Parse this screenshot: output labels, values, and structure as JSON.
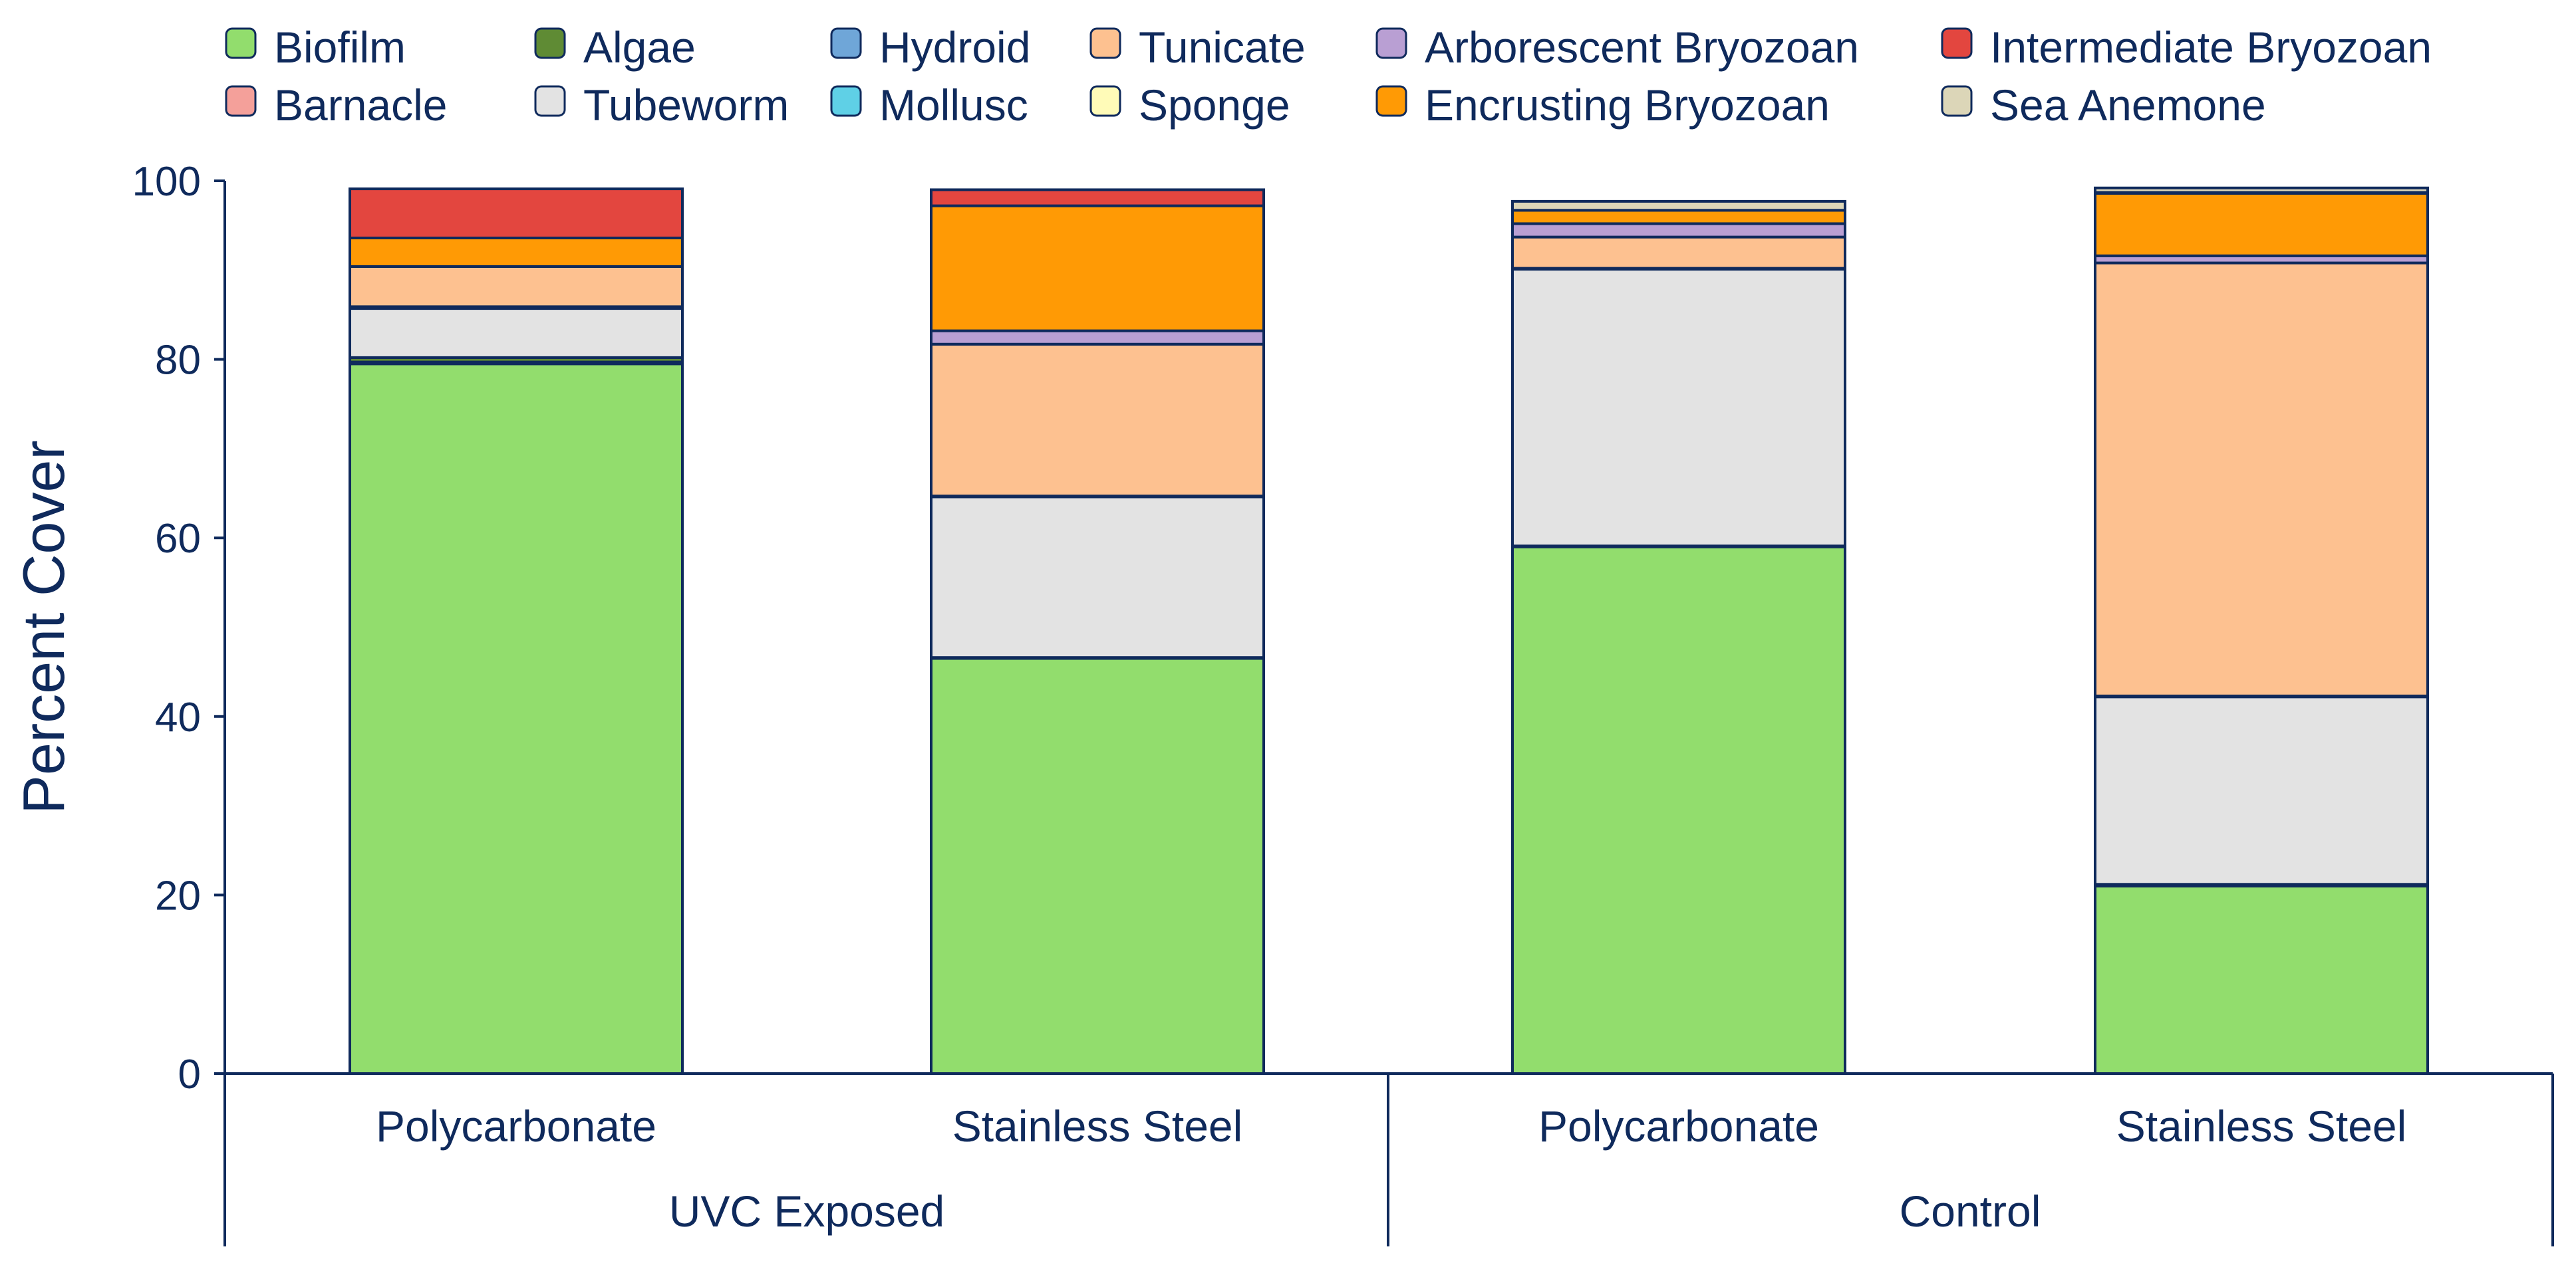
{
  "chart_data": {
    "type": "bar",
    "stacked": true,
    "title": "",
    "xlabel": "",
    "ylabel": "Percent Cover",
    "ylim": [
      0,
      100
    ],
    "yticks": [
      0,
      20,
      40,
      60,
      80,
      100
    ],
    "legend_position": "top",
    "categories": [
      "Polycarbonate",
      "Stainless Steel",
      "Polycarbonate",
      "Stainless Steel"
    ],
    "groups": [
      {
        "label": "UVC Exposed",
        "categories": [
          0,
          1
        ]
      },
      {
        "label": "Control",
        "categories": [
          2,
          3
        ]
      }
    ],
    "series": [
      {
        "name": "Biofilm",
        "color": "#92dd6d",
        "values": [
          79.5,
          46.5,
          59.0,
          21.0
        ]
      },
      {
        "name": "Barnacle",
        "color": "#f4a09a",
        "values": [
          0.2,
          0.1,
          0.1,
          0.2
        ]
      },
      {
        "name": "Algae",
        "color": "#5f8b34",
        "values": [
          0.5,
          0.0,
          0.0,
          0.0
        ]
      },
      {
        "name": "Tubeworm",
        "color": "#e3e3e3",
        "values": [
          5.5,
          18.0,
          31.0,
          21.0
        ]
      },
      {
        "name": "Hydroid",
        "color": "#6fa6d8",
        "values": [
          0.0,
          0.0,
          0.0,
          0.0
        ]
      },
      {
        "name": "Mollusc",
        "color": "#5fd0e6",
        "values": [
          0.2,
          0.1,
          0.1,
          0.1
        ]
      },
      {
        "name": "Tunicate",
        "color": "#fdc190",
        "values": [
          4.5,
          17.0,
          3.5,
          48.5
        ]
      },
      {
        "name": "Sponge",
        "color": "#fffbb8",
        "values": [
          0.0,
          0.0,
          0.0,
          0.0
        ]
      },
      {
        "name": "Arborescent Bryozoan",
        "color": "#b99fd3",
        "values": [
          0.0,
          1.5,
          1.5,
          0.8
        ]
      },
      {
        "name": "Encrusting Bryozoan",
        "color": "#ff9a05",
        "values": [
          3.2,
          14.0,
          1.5,
          7.0
        ]
      },
      {
        "name": "Intermediate Bryozoan",
        "color": "#e3463f",
        "values": [
          5.5,
          1.8,
          0.0,
          0.1
        ]
      },
      {
        "name": "Sea Anemone",
        "color": "#dcd6b8",
        "values": [
          0.0,
          0.0,
          1.0,
          0.5
        ]
      }
    ],
    "legend_order": [
      "Biofilm",
      "Algae",
      "Hydroid",
      "Tunicate",
      "Arborescent Bryozoan",
      "Intermediate Bryozoan",
      "Barnacle",
      "Tubeworm",
      "Mollusc",
      "Sponge",
      "Encrusting Bryozoan",
      "Sea Anemone"
    ],
    "axis_color": "#0f2a5c",
    "bar_outline_color": "#0f2a5c"
  }
}
